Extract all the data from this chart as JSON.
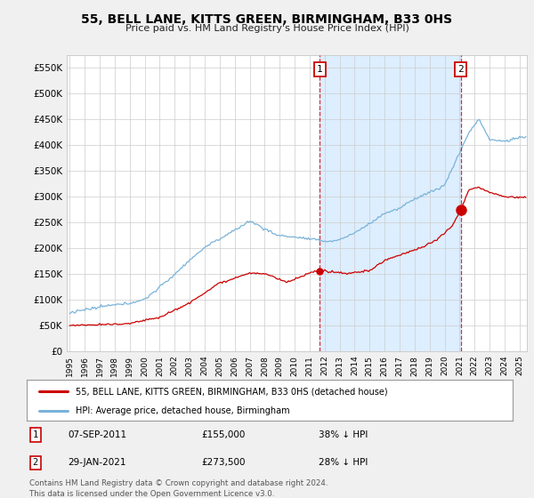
{
  "title": "55, BELL LANE, KITTS GREEN, BIRMINGHAM, B33 0HS",
  "subtitle": "Price paid vs. HM Land Registry's House Price Index (HPI)",
  "ylabel_ticks": [
    "£0",
    "£50K",
    "£100K",
    "£150K",
    "£200K",
    "£250K",
    "£300K",
    "£350K",
    "£400K",
    "£450K",
    "£500K",
    "£550K"
  ],
  "ytick_values": [
    0,
    50000,
    100000,
    150000,
    200000,
    250000,
    300000,
    350000,
    400000,
    450000,
    500000,
    550000
  ],
  "ylim": [
    0,
    575000
  ],
  "xlim_start": 1994.8,
  "xlim_end": 2025.5,
  "sale1_x": 2011.68,
  "sale1_y": 155000,
  "sale1_date": "07-SEP-2011",
  "sale1_price": "£155,000",
  "sale1_hpi": "38% ↓ HPI",
  "sale2_x": 2021.08,
  "sale2_y": 273500,
  "sale2_date": "29-JAN-2021",
  "sale2_price": "£273,500",
  "sale2_hpi": "28% ↓ HPI",
  "legend_line1": "55, BELL LANE, KITTS GREEN, BIRMINGHAM, B33 0HS (detached house)",
  "legend_line2": "HPI: Average price, detached house, Birmingham",
  "footer": "Contains HM Land Registry data © Crown copyright and database right 2024.\nThis data is licensed under the Open Government Licence v3.0.",
  "line_color_red": "#cc0000",
  "line_color_blue": "#7ab3d9",
  "plot_bg": "#ffffff",
  "grid_color": "#cccccc",
  "span_color": "#ddeeff"
}
